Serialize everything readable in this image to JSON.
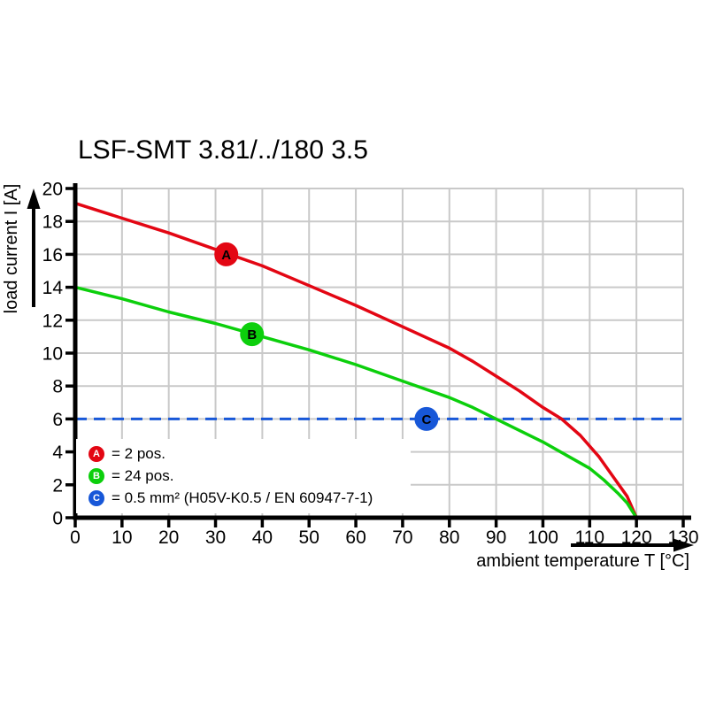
{
  "page": {
    "background": "#ffffff"
  },
  "chart_data": {
    "type": "line",
    "title": "LSF-SMT 3.81/../180 3.5",
    "xlabel": "ambient temperature T [°C]",
    "ylabel": "load current I [A]",
    "xlim": [
      0,
      130
    ],
    "ylim": [
      0,
      20
    ],
    "xticks": [
      0,
      10,
      20,
      30,
      40,
      50,
      60,
      70,
      80,
      90,
      100,
      110,
      120,
      130
    ],
    "yticks": [
      0,
      2,
      4,
      6,
      8,
      10,
      12,
      14,
      16,
      18,
      20
    ],
    "grid": true,
    "grid_color": "#c9c9c9",
    "axis_color": "#000000",
    "legend_position": "inside lower-left",
    "series": [
      {
        "name": "A",
        "legend_label": "= 2 pos.",
        "color": "#e30613",
        "type": "curve",
        "points": [
          [
            0,
            19.1
          ],
          [
            10,
            18.2
          ],
          [
            20,
            17.3
          ],
          [
            30,
            16.3
          ],
          [
            40,
            15.3
          ],
          [
            50,
            14.1
          ],
          [
            60,
            12.9
          ],
          [
            70,
            11.6
          ],
          [
            80,
            10.3
          ],
          [
            85,
            9.5
          ],
          [
            90,
            8.6
          ],
          [
            95,
            7.7
          ],
          [
            100,
            6.7
          ],
          [
            104,
            6.0
          ],
          [
            108,
            5.0
          ],
          [
            112,
            3.7
          ],
          [
            115,
            2.5
          ],
          [
            118,
            1.3
          ],
          [
            120,
            0
          ]
        ],
        "marker": {
          "x": 32.3,
          "y": 16.0,
          "letter": "A"
        }
      },
      {
        "name": "B",
        "legend_label": "= 24 pos.",
        "color": "#0ccf0c",
        "type": "curve",
        "points": [
          [
            0,
            14.0
          ],
          [
            10,
            13.3
          ],
          [
            20,
            12.5
          ],
          [
            30,
            11.8
          ],
          [
            40,
            11.0
          ],
          [
            50,
            10.2
          ],
          [
            60,
            9.3
          ],
          [
            70,
            8.3
          ],
          [
            80,
            7.3
          ],
          [
            85,
            6.7
          ],
          [
            90,
            6.0
          ],
          [
            95,
            5.3
          ],
          [
            100,
            4.6
          ],
          [
            105,
            3.8
          ],
          [
            110,
            3.0
          ],
          [
            113,
            2.3
          ],
          [
            116,
            1.5
          ],
          [
            118,
            0.9
          ],
          [
            120,
            0
          ]
        ],
        "marker": {
          "x": 37.8,
          "y": 11.15,
          "letter": "B"
        }
      },
      {
        "name": "C",
        "legend_label": "= 0.5 mm² (H05V-K0.5 / EN 60947-7-1)",
        "color": "#1757d8",
        "type": "hline",
        "value": 6.0,
        "x_range": [
          0,
          130
        ],
        "dashed": true,
        "marker": {
          "x": 75.1,
          "y": 6.0,
          "letter": "C"
        }
      }
    ]
  }
}
